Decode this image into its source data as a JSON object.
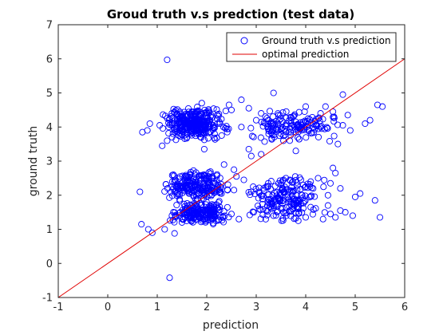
{
  "chart_data": {
    "type": "scatter",
    "title": "Groud truth v.s predction (test data)",
    "xlabel": "prediction",
    "ylabel": "ground truth",
    "xlim": [
      -1,
      6
    ],
    "ylim": [
      -1,
      7
    ],
    "xticks": [
      "-1",
      "0",
      "1",
      "2",
      "3",
      "4",
      "5",
      "6"
    ],
    "yticks": [
      "-1",
      "0",
      "1",
      "2",
      "3",
      "4",
      "5",
      "6",
      "7"
    ],
    "grid": false,
    "legend_position": "top-right",
    "colors": {
      "points": "#0000ff",
      "line": "#e00000",
      "axes": "#262626"
    },
    "series": [
      {
        "name": "Ground truth v.s prediction",
        "marker": "open-circle",
        "x": [
          1.2,
          0.85,
          1.25,
          0.8,
          1.05,
          2.45,
          2.7,
          1.9,
          0.7,
          0.65,
          0.68,
          0.9,
          0.82,
          2.3,
          2.55,
          2.75,
          3.6,
          3.2,
          4.1,
          3.8,
          4.75,
          5.45,
          4.55,
          4.4,
          3.35,
          3.75,
          4.0,
          4.3,
          3.25,
          2.85,
          3.55,
          3.1,
          2.9,
          4.65,
          3.05,
          3.15,
          4.55,
          4.6,
          4.25,
          5.1,
          5.0,
          4.45,
          4.7,
          3.45,
          3.9,
          4.1,
          4.0,
          2.6,
          2.5,
          2.65,
          2.95,
          2.55,
          2.35,
          3.45,
          3.0,
          3.3,
          3.95,
          4.05,
          4.3,
          3.9,
          4.85,
          5.3,
          5.2,
          4.75,
          4.9,
          4.0,
          3.35,
          3.55,
          3.85,
          4.5,
          4.8,
          5.5,
          5.55,
          4.2,
          3.7,
          3.4,
          3.1,
          2.85,
          2.5,
          4.35,
          3.85,
          4.6,
          4.95,
          5.4,
          4.5,
          4.15,
          3.55,
          3.2,
          2.9,
          3.45,
          3.95,
          4.45,
          4.7,
          1.25,
          1.15,
          1.35,
          1.5,
          1.95,
          1.1,
          1.2,
          1.3
        ],
        "y": [
          5.97,
          4.1,
          4.25,
          3.9,
          4.05,
          4.65,
          4.8,
          4.7,
          3.85,
          2.1,
          1.15,
          0.9,
          1.0,
          2.05,
          2.15,
          2.45,
          2.5,
          1.55,
          2.4,
          3.3,
          4.95,
          4.65,
          4.45,
          4.6,
          5.0,
          4.3,
          4.6,
          4.4,
          3.8,
          3.35,
          3.6,
          3.2,
          3.15,
          3.5,
          2.1,
          2.2,
          2.8,
          2.65,
          2.5,
          2.05,
          1.95,
          1.7,
          1.55,
          1.9,
          1.75,
          1.65,
          2.25,
          2.55,
          1.45,
          1.3,
          1.5,
          2.75,
          2.9,
          4.35,
          4.2,
          4.1,
          4.15,
          4.25,
          4.0,
          3.95,
          4.35,
          4.2,
          4.1,
          4.05,
          3.9,
          1.35,
          1.4,
          1.5,
          1.6,
          1.45,
          1.5,
          1.35,
          4.6,
          4.05,
          3.85,
          3.95,
          4.4,
          4.55,
          4.5,
          1.3,
          1.25,
          1.35,
          1.4,
          1.85,
          2.35,
          2.2,
          2.45,
          2.25,
          2.1,
          2.35,
          2.3,
          2.0,
          2.2,
          -0.42,
          1.0,
          0.88,
          1.2,
          3.35,
          3.45,
          3.6,
          3.7
        ],
        "clusters": [
          {
            "x_range": [
              0.95,
              2.55
            ],
            "y_range": [
              3.6,
              4.6
            ],
            "count": 320
          },
          {
            "x_range": [
              1.0,
              2.6
            ],
            "y_range": [
              1.7,
              2.8
            ],
            "count": 220
          },
          {
            "x_range": [
              1.1,
              2.6
            ],
            "y_range": [
              1.1,
              1.8
            ],
            "count": 200
          },
          {
            "x_range": [
              2.5,
              4.7
            ],
            "y_range": [
              1.2,
              2.6
            ],
            "count": 180
          },
          {
            "x_range": [
              2.5,
              5.0
            ],
            "y_range": [
              3.5,
              4.5
            ],
            "count": 140
          }
        ]
      },
      {
        "name": "optimal prediction",
        "marker": "line",
        "x": [
          -1,
          6
        ],
        "y": [
          -1,
          6
        ]
      }
    ]
  }
}
